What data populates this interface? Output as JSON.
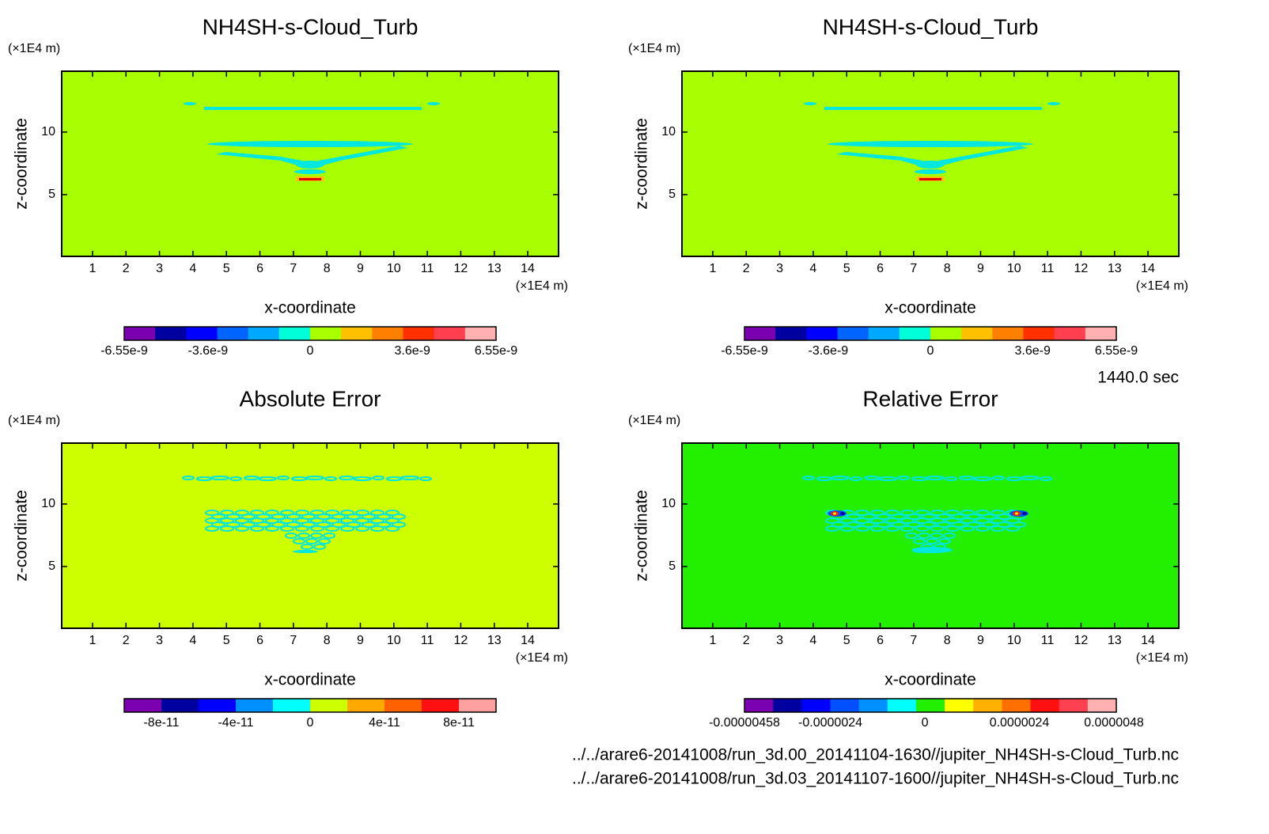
{
  "chart_data": [
    {
      "type": "contour",
      "title": "NH4SH-s-Cloud_Turb",
      "xlabel": "x-coordinate",
      "ylabel": "z-coordinate",
      "x_unit": "(×1E4 m)",
      "y_unit": "(×1E4 m)",
      "xlim": [
        0.08,
        14.92
      ],
      "ylim": [
        0.06,
        14.87
      ],
      "xticks": [
        1,
        2,
        3,
        4,
        5,
        6,
        7,
        8,
        9,
        10,
        11,
        12,
        13,
        14
      ],
      "yticks": [
        5,
        10
      ],
      "background": "#a8ff00",
      "feature": "cloud",
      "colorbar": {
        "range": [
          -6.55e-09,
          6.55e-09
        ],
        "ticks": [
          -6.55e-09,
          -3.6e-09,
          0,
          3.6e-09,
          6.55e-09
        ],
        "colors": [
          "#7a00b0",
          "#0000a0",
          "#0000ff",
          "#0064ff",
          "#00a8ff",
          "#00ffd8",
          "#a8ff00",
          "#ffc000",
          "#ff8000",
          "#ff3000",
          "#ff4050",
          "#ffb0b0"
        ]
      }
    },
    {
      "type": "contour",
      "title": "NH4SH-s-Cloud_Turb",
      "xlabel": "x-coordinate",
      "ylabel": "z-coordinate",
      "x_unit": "(×1E4 m)",
      "y_unit": "(×1E4 m)",
      "xlim": [
        0.08,
        14.92
      ],
      "ylim": [
        0.06,
        14.87
      ],
      "xticks": [
        1,
        2,
        3,
        4,
        5,
        6,
        7,
        8,
        9,
        10,
        11,
        12,
        13,
        14
      ],
      "yticks": [
        5,
        10
      ],
      "background": "#a8ff00",
      "feature": "cloud",
      "colorbar": {
        "range": [
          -6.55e-09,
          6.55e-09
        ],
        "ticks": [
          -6.55e-09,
          -3.6e-09,
          0,
          3.6e-09,
          6.55e-09
        ],
        "colors": [
          "#7a00b0",
          "#0000a0",
          "#0000ff",
          "#0064ff",
          "#00a8ff",
          "#00ffd8",
          "#a8ff00",
          "#ffc000",
          "#ff8000",
          "#ff3000",
          "#ff4050",
          "#ffb0b0"
        ]
      }
    },
    {
      "type": "contour",
      "title": "Absolute Error",
      "xlabel": "x-coordinate",
      "ylabel": "z-coordinate",
      "x_unit": "(×1E4 m)",
      "y_unit": "(×1E4 m)",
      "xlim": [
        0.08,
        14.92
      ],
      "ylim": [
        0.06,
        14.87
      ],
      "xticks": [
        1,
        2,
        3,
        4,
        5,
        6,
        7,
        8,
        9,
        10,
        11,
        12,
        13,
        14
      ],
      "yticks": [
        5,
        10
      ],
      "background": "#ccff00",
      "feature": "error",
      "colorbar": {
        "range": [
          -1e-10,
          1e-10
        ],
        "ticks": [
          -8e-11,
          -4e-11,
          0,
          4e-11,
          8e-11
        ],
        "colors": [
          "#7a00b0",
          "#0000a0",
          "#0000ff",
          "#0090ff",
          "#00ffff",
          "#ccff00",
          "#ffa800",
          "#ff6000",
          "#ff1010",
          "#ffa0a0"
        ]
      }
    },
    {
      "type": "contour",
      "title": "Relative Error",
      "xlabel": "x-coordinate",
      "ylabel": "z-coordinate",
      "x_unit": "(×1E4 m)",
      "y_unit": "(×1E4 m)",
      "xlim": [
        0.08,
        14.92
      ],
      "ylim": [
        0.06,
        14.87
      ],
      "xticks": [
        1,
        2,
        3,
        4,
        5,
        6,
        7,
        8,
        9,
        10,
        11,
        12,
        13,
        14
      ],
      "yticks": [
        5,
        10
      ],
      "background": "#22f000",
      "feature": "relative",
      "colorbar": {
        "range": [
          -4.58e-06,
          4.86e-06
        ],
        "ticks": [
          -4.58e-06,
          -2.4e-06,
          0,
          2.4e-06,
          4.8e-06
        ],
        "colors": [
          "#7a00b0",
          "#0000a0",
          "#0000ff",
          "#0050ff",
          "#0090ff",
          "#00ffff",
          "#22f000",
          "#ffff00",
          "#ffb000",
          "#ff7000",
          "#ff1010",
          "#ff4050",
          "#ffb0b0"
        ]
      }
    }
  ],
  "time_label": "1440.0 sec",
  "files": [
    "../../arare6-20141008/run_3d.00_20141104-1630//jupiter_NH4SH-s-Cloud_Turb.nc",
    "../../arare6-20141008/run_3d.03_20141107-1600//jupiter_NH4SH-s-Cloud_Turb.nc"
  ]
}
